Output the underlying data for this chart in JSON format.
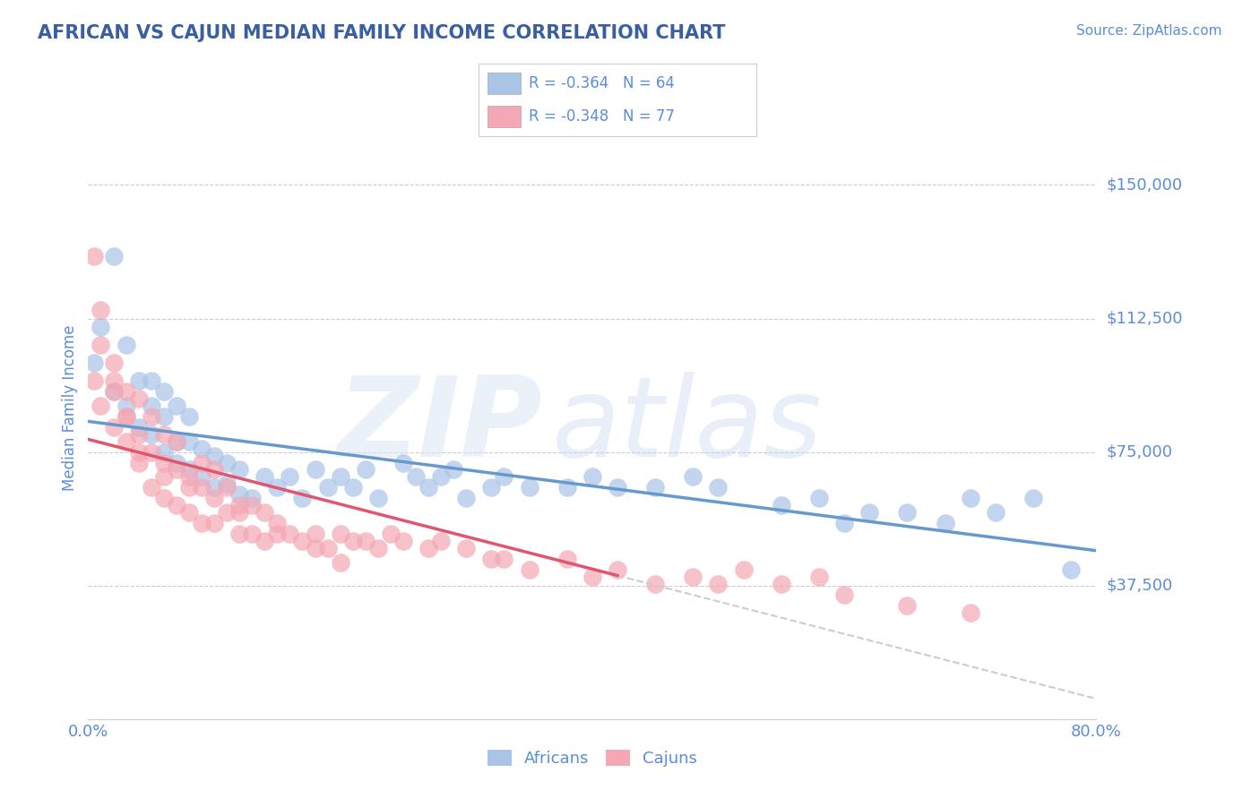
{
  "title": "AFRICAN VS CAJUN MEDIAN FAMILY INCOME CORRELATION CHART",
  "source_text": "Source: ZipAtlas.com",
  "ylabel": "Median Family Income",
  "xlim": [
    0.0,
    0.8
  ],
  "ylim": [
    0,
    175000
  ],
  "ytick_labels": [
    "$37,500",
    "$75,000",
    "$112,500",
    "$150,000"
  ],
  "ytick_values": [
    37500,
    75000,
    112500,
    150000
  ],
  "title_color": "#3a5fa0",
  "axis_color": "#5b8dd9",
  "legend_r1": "R = -0.364",
  "legend_n1": "N = 64",
  "legend_r2": "R = -0.348",
  "legend_n2": "N = 77",
  "legend_label1": "Africans",
  "legend_label2": "Cajuns",
  "blue_color": "#aac4e8",
  "pink_color": "#f4a7b4",
  "trend_blue": "#6699cc",
  "trend_pink": "#e05570",
  "trend_dashed_color": "#cccccc",
  "africans_x": [
    0.005,
    0.01,
    0.02,
    0.02,
    0.03,
    0.03,
    0.04,
    0.04,
    0.05,
    0.05,
    0.05,
    0.06,
    0.06,
    0.06,
    0.07,
    0.07,
    0.07,
    0.08,
    0.08,
    0.08,
    0.09,
    0.09,
    0.1,
    0.1,
    0.11,
    0.11,
    0.12,
    0.12,
    0.13,
    0.14,
    0.15,
    0.16,
    0.17,
    0.18,
    0.19,
    0.2,
    0.21,
    0.22,
    0.23,
    0.25,
    0.26,
    0.27,
    0.28,
    0.29,
    0.3,
    0.32,
    0.33,
    0.35,
    0.38,
    0.4,
    0.42,
    0.45,
    0.48,
    0.5,
    0.55,
    0.58,
    0.6,
    0.62,
    0.65,
    0.68,
    0.7,
    0.72,
    0.75,
    0.78
  ],
  "africans_y": [
    100000,
    110000,
    92000,
    130000,
    88000,
    105000,
    82000,
    95000,
    80000,
    88000,
    95000,
    75000,
    85000,
    92000,
    72000,
    78000,
    88000,
    70000,
    78000,
    85000,
    68000,
    76000,
    65000,
    74000,
    66000,
    72000,
    63000,
    70000,
    62000,
    68000,
    65000,
    68000,
    62000,
    70000,
    65000,
    68000,
    65000,
    70000,
    62000,
    72000,
    68000,
    65000,
    68000,
    70000,
    62000,
    65000,
    68000,
    65000,
    65000,
    68000,
    65000,
    65000,
    68000,
    65000,
    60000,
    62000,
    55000,
    58000,
    58000,
    55000,
    62000,
    58000,
    62000,
    42000
  ],
  "cajuns_x": [
    0.005,
    0.005,
    0.01,
    0.01,
    0.01,
    0.02,
    0.02,
    0.02,
    0.03,
    0.03,
    0.03,
    0.04,
    0.04,
    0.04,
    0.05,
    0.05,
    0.05,
    0.06,
    0.06,
    0.06,
    0.07,
    0.07,
    0.07,
    0.08,
    0.08,
    0.09,
    0.09,
    0.09,
    0.1,
    0.1,
    0.1,
    0.11,
    0.11,
    0.12,
    0.12,
    0.13,
    0.13,
    0.14,
    0.14,
    0.15,
    0.16,
    0.17,
    0.18,
    0.19,
    0.2,
    0.21,
    0.22,
    0.23,
    0.24,
    0.25,
    0.27,
    0.28,
    0.3,
    0.32,
    0.33,
    0.35,
    0.38,
    0.4,
    0.42,
    0.45,
    0.48,
    0.5,
    0.52,
    0.55,
    0.58,
    0.6,
    0.65,
    0.7,
    0.12,
    0.15,
    0.18,
    0.2,
    0.08,
    0.06,
    0.04,
    0.03,
    0.02
  ],
  "cajuns_y": [
    130000,
    95000,
    115000,
    88000,
    105000,
    82000,
    92000,
    100000,
    78000,
    85000,
    92000,
    72000,
    80000,
    90000,
    65000,
    75000,
    85000,
    62000,
    72000,
    80000,
    60000,
    70000,
    78000,
    58000,
    68000,
    55000,
    65000,
    72000,
    55000,
    62000,
    70000,
    58000,
    65000,
    52000,
    60000,
    52000,
    60000,
    50000,
    58000,
    55000,
    52000,
    50000,
    52000,
    48000,
    52000,
    50000,
    50000,
    48000,
    52000,
    50000,
    48000,
    50000,
    48000,
    45000,
    45000,
    42000,
    45000,
    40000,
    42000,
    38000,
    40000,
    38000,
    42000,
    38000,
    40000,
    35000,
    32000,
    30000,
    58000,
    52000,
    48000,
    44000,
    65000,
    68000,
    75000,
    85000,
    95000
  ]
}
